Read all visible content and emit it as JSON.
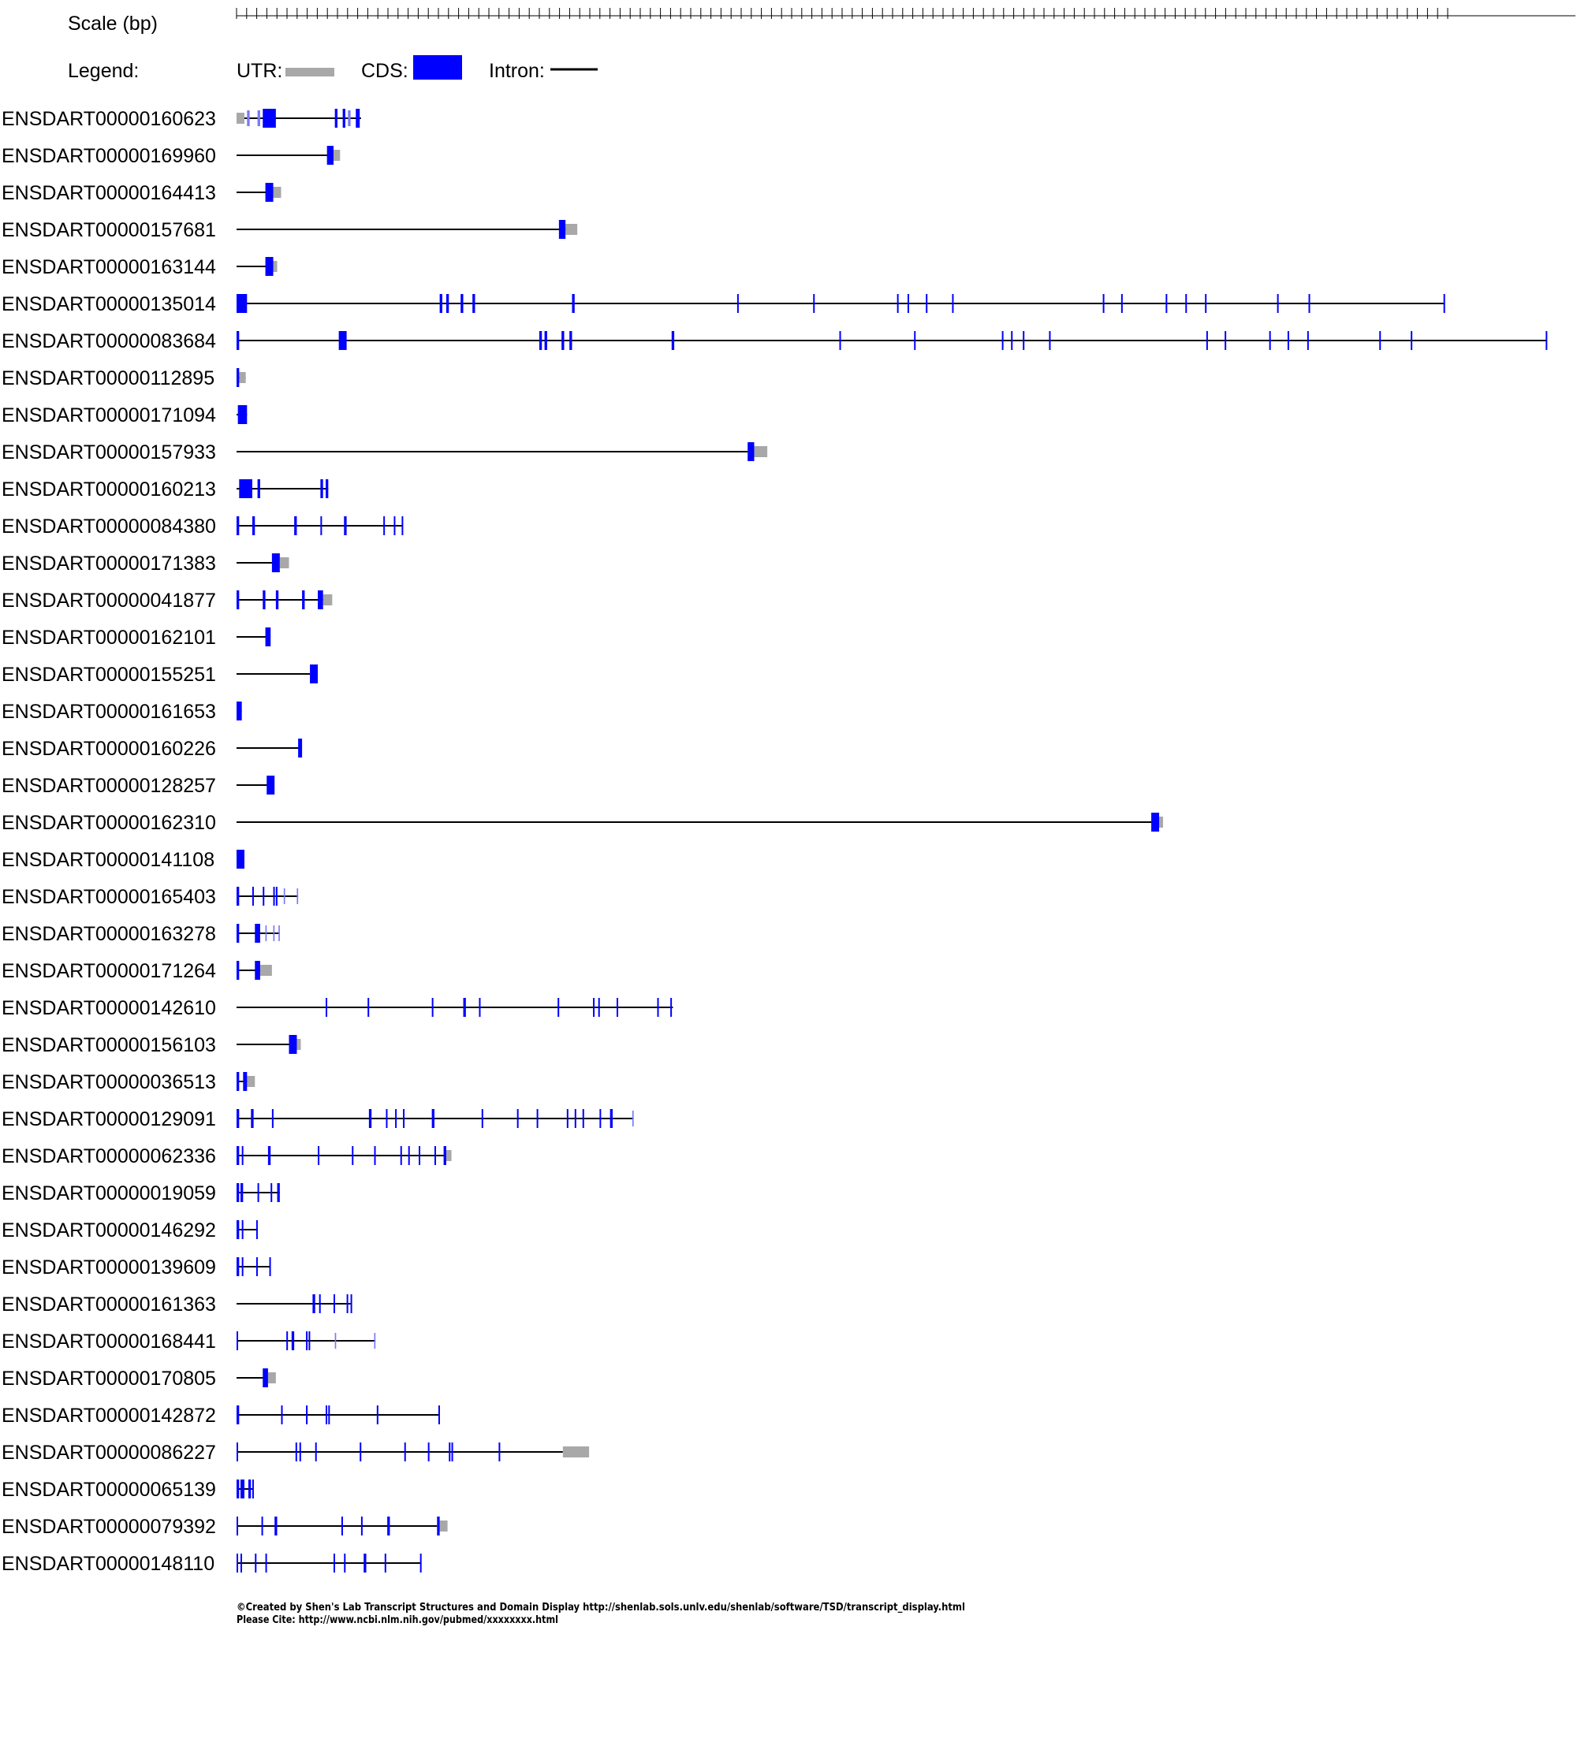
{
  "header": {
    "scale_label": "Scale (bp)",
    "legend_label": "Legend:",
    "utr_label": "UTR:",
    "cds_label": "CDS:",
    "intron_label": "Intron:"
  },
  "colors": {
    "utr": "#a8a8a8",
    "cds": "#0000ff",
    "intron": "#000000"
  },
  "transcripts": [
    {
      "id": "ENSDART00000160623",
      "span": [
        0,
        0.095
      ],
      "utr": [
        [
          0,
          0.006
        ]
      ],
      "cds": [
        [
          0.02,
          0.03
        ],
        [
          0.075,
          0.077
        ],
        [
          0.081,
          0.083
        ],
        [
          0.091,
          0.094
        ]
      ],
      "thin": [
        [
          0.008,
          0.01
        ],
        [
          0.016,
          0.018
        ],
        [
          0.085,
          0.087
        ]
      ]
    },
    {
      "id": "ENSDART00000169960",
      "span": [
        0,
        0.078
      ],
      "utr": [
        [
          0.074,
          0.079
        ]
      ],
      "cds": [
        [
          0.069,
          0.074
        ]
      ]
    },
    {
      "id": "ENSDART00000164413",
      "span": [
        0,
        0.033
      ],
      "utr": [
        [
          0.028,
          0.034
        ]
      ],
      "cds": [
        [
          0.022,
          0.028
        ]
      ]
    },
    {
      "id": "ENSDART00000157681",
      "span": [
        0,
        0.256
      ],
      "utr": [
        [
          0.251,
          0.26
        ]
      ],
      "cds": [
        [
          0.246,
          0.251
        ]
      ]
    },
    {
      "id": "ENSDART00000163144",
      "span": [
        0,
        0.031
      ],
      "utr": [
        [
          0.028,
          0.031
        ]
      ],
      "cds": [
        [
          0.022,
          0.028
        ]
      ]
    },
    {
      "id": "ENSDART00000135014",
      "span": [
        0,
        0.922
      ],
      "cds": [
        [
          0,
          0.008
        ],
        [
          0.155,
          0.157
        ],
        [
          0.16,
          0.162
        ],
        [
          0.171,
          0.173
        ],
        [
          0.18,
          0.182
        ],
        [
          0.256,
          0.258
        ],
        [
          0.382,
          0.383
        ],
        [
          0.44,
          0.441
        ],
        [
          0.504,
          0.505
        ],
        [
          0.512,
          0.513
        ],
        [
          0.526,
          0.527
        ],
        [
          0.546,
          0.547
        ],
        [
          0.661,
          0.662
        ],
        [
          0.675,
          0.676
        ],
        [
          0.709,
          0.71
        ],
        [
          0.724,
          0.725
        ],
        [
          0.739,
          0.74
        ],
        [
          0.794,
          0.795
        ],
        [
          0.818,
          0.819
        ],
        [
          0.921,
          0.922
        ]
      ]
    },
    {
      "id": "ENSDART00000083684",
      "span": [
        0,
        1.0
      ],
      "cds": [
        [
          0,
          0.002
        ],
        [
          0.078,
          0.084
        ],
        [
          0.231,
          0.233
        ],
        [
          0.235,
          0.237
        ],
        [
          0.248,
          0.25
        ],
        [
          0.254,
          0.256
        ],
        [
          0.332,
          0.334
        ],
        [
          0.46,
          0.461
        ],
        [
          0.517,
          0.518
        ],
        [
          0.584,
          0.585
        ],
        [
          0.591,
          0.592
        ],
        [
          0.6,
          0.601
        ],
        [
          0.62,
          0.621
        ],
        [
          0.74,
          0.741
        ],
        [
          0.754,
          0.755
        ],
        [
          0.788,
          0.789
        ],
        [
          0.802,
          0.803
        ],
        [
          0.817,
          0.818
        ],
        [
          0.872,
          0.873
        ],
        [
          0.896,
          0.897
        ],
        [
          0.999,
          1.0
        ]
      ]
    },
    {
      "id": "ENSDART00000112895",
      "span": [
        0,
        0.007
      ],
      "utr": [
        [
          0.002,
          0.007
        ]
      ],
      "cds": [
        [
          0,
          0.002
        ]
      ]
    },
    {
      "id": "ENSDART00000171094",
      "span": [
        0,
        0.008
      ],
      "cds": [
        [
          0.001,
          0.008
        ]
      ]
    },
    {
      "id": "ENSDART00000157933",
      "span": [
        0,
        0.39
      ],
      "utr": [
        [
          0.395,
          0.405
        ]
      ],
      "cds": [
        [
          0.39,
          0.395
        ]
      ]
    },
    {
      "id": "ENSDART00000160213",
      "span": [
        0,
        0.07
      ],
      "cds": [
        [
          0.002,
          0.012
        ],
        [
          0.016,
          0.018
        ],
        [
          0.064,
          0.066
        ],
        [
          0.068,
          0.07
        ]
      ]
    },
    {
      "id": "ENSDART00000084380",
      "span": [
        0,
        0.127
      ],
      "cds": [
        [
          0,
          0.002
        ],
        [
          0.012,
          0.014
        ],
        [
          0.044,
          0.046
        ],
        [
          0.064,
          0.065
        ],
        [
          0.082,
          0.084
        ],
        [
          0.112,
          0.113
        ],
        [
          0.12,
          0.121
        ],
        [
          0.126,
          0.127
        ]
      ]
    },
    {
      "id": "ENSDART00000171383",
      "span": [
        0,
        0.03
      ],
      "utr": [
        [
          0.033,
          0.04
        ]
      ],
      "cds": [
        [
          0.027,
          0.033
        ]
      ]
    },
    {
      "id": "ENSDART00000041877",
      "span": [
        0,
        0.07
      ],
      "utr": [
        [
          0.066,
          0.073
        ]
      ],
      "cds": [
        [
          0,
          0.002
        ],
        [
          0.02,
          0.022
        ],
        [
          0.03,
          0.032
        ],
        [
          0.05,
          0.052
        ],
        [
          0.062,
          0.066
        ]
      ]
    },
    {
      "id": "ENSDART00000162101",
      "span": [
        0,
        0.025
      ],
      "cds": [
        [
          0.022,
          0.026
        ]
      ]
    },
    {
      "id": "ENSDART00000155251",
      "span": [
        0,
        0.056
      ],
      "cds": [
        [
          0.056,
          0.062
        ]
      ]
    },
    {
      "id": "ENSDART00000161653",
      "span": [
        0,
        0.004
      ],
      "cds": [
        [
          0,
          0.004
        ]
      ]
    },
    {
      "id": "ENSDART00000160226",
      "span": [
        0,
        0.049
      ],
      "cds": [
        [
          0.047,
          0.05
        ]
      ]
    },
    {
      "id": "ENSDART00000128257",
      "span": [
        0,
        0.027
      ],
      "cds": [
        [
          0.023,
          0.029
        ]
      ]
    },
    {
      "id": "ENSDART00000162310",
      "span": [
        0,
        0.7
      ],
      "utr": [
        [
          0.704,
          0.707
        ]
      ],
      "cds": [
        [
          0.698,
          0.704
        ]
      ]
    },
    {
      "id": "ENSDART00000141108",
      "span": [
        0,
        0.006
      ],
      "cds": [
        [
          0,
          0.006
        ]
      ]
    },
    {
      "id": "ENSDART00000165403",
      "span": [
        0,
        0.047
      ],
      "cds": [
        [
          0,
          0.002
        ],
        [
          0.012,
          0.013
        ],
        [
          0.02,
          0.021
        ],
        [
          0.028,
          0.029
        ],
        [
          0.03,
          0.031
        ]
      ],
      "thin": [
        [
          0.036,
          0.037
        ],
        [
          0.046,
          0.047
        ]
      ]
    },
    {
      "id": "ENSDART00000163278",
      "span": [
        0,
        0.033
      ],
      "cds": [
        [
          0,
          0.002
        ],
        [
          0.014,
          0.018
        ]
      ],
      "thin": [
        [
          0.022,
          0.023
        ],
        [
          0.028,
          0.029
        ],
        [
          0.032,
          0.033
        ]
      ]
    },
    {
      "id": "ENSDART00000171264",
      "span": [
        0,
        0.022
      ],
      "utr": [
        [
          0.018,
          0.027
        ]
      ],
      "cds": [
        [
          0,
          0.002
        ],
        [
          0.014,
          0.018
        ]
      ]
    },
    {
      "id": "ENSDART00000142610",
      "span": [
        0,
        0.333
      ],
      "cds": [
        [
          0.068,
          0.069
        ],
        [
          0.1,
          0.101
        ],
        [
          0.149,
          0.15
        ],
        [
          0.173,
          0.175
        ],
        [
          0.185,
          0.186
        ],
        [
          0.245,
          0.246
        ],
        [
          0.272,
          0.273
        ],
        [
          0.276,
          0.277
        ],
        [
          0.29,
          0.291
        ],
        [
          0.321,
          0.322
        ],
        [
          0.331,
          0.332
        ]
      ]
    },
    {
      "id": "ENSDART00000156103",
      "span": [
        0,
        0.04
      ],
      "utr": [
        [
          0.046,
          0.049
        ]
      ],
      "cds": [
        [
          0.04,
          0.046
        ]
      ]
    },
    {
      "id": "ENSDART00000036513",
      "span": [
        0,
        0.008
      ],
      "utr": [
        [
          0.008,
          0.014
        ]
      ],
      "cds": [
        [
          0,
          0.002
        ],
        [
          0.005,
          0.008
        ]
      ]
    },
    {
      "id": "ENSDART00000129091",
      "span": [
        0,
        0.303
      ],
      "cds": [
        [
          0,
          0.002
        ],
        [
          0.011,
          0.013
        ],
        [
          0.027,
          0.028
        ],
        [
          0.101,
          0.103
        ],
        [
          0.114,
          0.115
        ],
        [
          0.121,
          0.122
        ],
        [
          0.127,
          0.128
        ],
        [
          0.149,
          0.151
        ],
        [
          0.187,
          0.188
        ],
        [
          0.214,
          0.215
        ],
        [
          0.229,
          0.23
        ],
        [
          0.252,
          0.253
        ],
        [
          0.258,
          0.259
        ],
        [
          0.264,
          0.265
        ],
        [
          0.277,
          0.278
        ],
        [
          0.285,
          0.287
        ]
      ],
      "thin": [
        [
          0.302,
          0.303
        ]
      ]
    },
    {
      "id": "ENSDART00000062336",
      "span": [
        0,
        0.16
      ],
      "utr": [
        [
          0.16,
          0.164
        ]
      ],
      "cds": [
        [
          0,
          0.002
        ],
        [
          0.004,
          0.005
        ],
        [
          0.024,
          0.026
        ],
        [
          0.062,
          0.063
        ],
        [
          0.088,
          0.089
        ],
        [
          0.105,
          0.106
        ],
        [
          0.125,
          0.126
        ],
        [
          0.131,
          0.132
        ],
        [
          0.139,
          0.14
        ],
        [
          0.151,
          0.152
        ],
        [
          0.158,
          0.16
        ]
      ]
    },
    {
      "id": "ENSDART00000019059",
      "span": [
        0,
        0.033
      ],
      "cds": [
        [
          0,
          0.002
        ],
        [
          0.003,
          0.005
        ],
        [
          0.016,
          0.017
        ],
        [
          0.026,
          0.027
        ],
        [
          0.031,
          0.033
        ]
      ]
    },
    {
      "id": "ENSDART00000146292",
      "span": [
        0,
        0.016
      ],
      "cds": [
        [
          0,
          0.002
        ],
        [
          0.004,
          0.005
        ],
        [
          0.015,
          0.016
        ]
      ]
    },
    {
      "id": "ENSDART00000139609",
      "span": [
        0,
        0.026
      ],
      "cds": [
        [
          0,
          0.002
        ],
        [
          0.004,
          0.005
        ],
        [
          0.015,
          0.016
        ],
        [
          0.025,
          0.026
        ]
      ]
    },
    {
      "id": "ENSDART00000161363",
      "span": [
        0,
        0.087
      ],
      "cds": [
        [
          0.058,
          0.06
        ],
        [
          0.063,
          0.064
        ],
        [
          0.074,
          0.075
        ],
        [
          0.084,
          0.085
        ],
        [
          0.087,
          0.088
        ]
      ]
    },
    {
      "id": "ENSDART00000168441",
      "span": [
        0,
        0.106
      ],
      "cds": [
        [
          0,
          0.001
        ],
        [
          0.038,
          0.039
        ],
        [
          0.042,
          0.044
        ],
        [
          0.053,
          0.054
        ],
        [
          0.055,
          0.056
        ]
      ],
      "thin": [
        [
          0.075,
          0.076
        ],
        [
          0.105,
          0.106
        ]
      ]
    },
    {
      "id": "ENSDART00000170805",
      "span": [
        0,
        0.021
      ],
      "utr": [
        [
          0.024,
          0.03
        ]
      ],
      "cds": [
        [
          0.02,
          0.024
        ]
      ]
    },
    {
      "id": "ENSDART00000142872",
      "span": [
        0,
        0.155
      ],
      "cds": [
        [
          0,
          0.002
        ],
        [
          0.034,
          0.035
        ],
        [
          0.053,
          0.054
        ],
        [
          0.068,
          0.069
        ],
        [
          0.07,
          0.071
        ],
        [
          0.107,
          0.108
        ],
        [
          0.154,
          0.155
        ]
      ]
    },
    {
      "id": "ENSDART00000086227",
      "span": [
        0,
        0.249
      ],
      "utr": [
        [
          0.249,
          0.269
        ]
      ],
      "cds": [
        [
          0,
          0.001
        ],
        [
          0.045,
          0.046
        ],
        [
          0.048,
          0.049
        ],
        [
          0.06,
          0.061
        ],
        [
          0.094,
          0.095
        ],
        [
          0.128,
          0.129
        ],
        [
          0.146,
          0.147
        ],
        [
          0.162,
          0.163
        ],
        [
          0.164,
          0.165
        ],
        [
          0.2,
          0.201
        ]
      ]
    },
    {
      "id": "ENSDART00000065139",
      "span": [
        0,
        0.013
      ],
      "cds": [
        [
          0,
          0.002
        ],
        [
          0.003,
          0.006
        ],
        [
          0.009,
          0.011
        ],
        [
          0.012,
          0.013
        ]
      ]
    },
    {
      "id": "ENSDART00000079392",
      "span": [
        0,
        0.153
      ],
      "utr": [
        [
          0.155,
          0.161
        ]
      ],
      "cds": [
        [
          0,
          0.001
        ],
        [
          0.019,
          0.02
        ],
        [
          0.029,
          0.031
        ],
        [
          0.08,
          0.081
        ],
        [
          0.095,
          0.096
        ],
        [
          0.115,
          0.117
        ],
        [
          0.153,
          0.155
        ]
      ]
    },
    {
      "id": "ENSDART00000148110",
      "span": [
        0,
        0.141
      ],
      "cds": [
        [
          0,
          0.001
        ],
        [
          0.003,
          0.004
        ],
        [
          0.014,
          0.015
        ],
        [
          0.022,
          0.023
        ],
        [
          0.074,
          0.075
        ],
        [
          0.082,
          0.083
        ],
        [
          0.097,
          0.099
        ],
        [
          0.113,
          0.114
        ],
        [
          0.14,
          0.141
        ]
      ]
    }
  ],
  "footer": {
    "line1": "©Created by Shen's Lab Transcript Structures and Domain Display http://shenlab.sols.unlv.edu/shenlab/software/TSD/transcript_display.html",
    "line2": "Please Cite: http://www.ncbi.nlm.nih.gov/pubmed/xxxxxxxx.html"
  }
}
